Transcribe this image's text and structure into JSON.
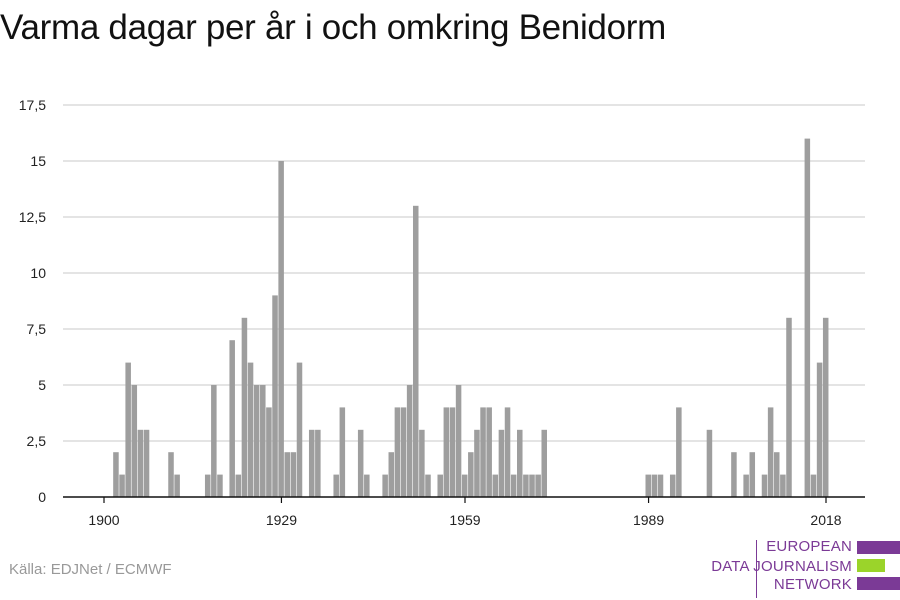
{
  "header": {
    "title": "Varma dagar per år i och omkring Benidorm"
  },
  "footer": {
    "source": "Källa: EDJNet / ECMWF"
  },
  "logo": {
    "lines": [
      "EUROPEAN",
      "DATA JOURNALISM",
      "NETWORK"
    ],
    "colors": {
      "purple": "#7b3a96",
      "green": "#9bd42a"
    }
  },
  "chart_data": {
    "type": "bar",
    "title": "Varma dagar per år i och omkring Benidorm",
    "xlabel": "",
    "ylabel": "",
    "bar_color": "#9e9e9e",
    "grid": true,
    "xlim": [
      1894,
      2024
    ],
    "ylim": [
      0,
      17.5
    ],
    "y_ticks": [
      0,
      2.5,
      5,
      7.5,
      10,
      12.5,
      15,
      17.5
    ],
    "y_tick_labels": [
      "0",
      "2,5",
      "5",
      "7,5",
      "10",
      "12,5",
      "15",
      "17,5"
    ],
    "x_ticks": [
      1900,
      1929,
      1959,
      1989,
      2018
    ],
    "x_tick_labels": [
      "1900",
      "1929",
      "1959",
      "1989",
      "2018"
    ],
    "data": [
      {
        "x": 1902,
        "y": 2
      },
      {
        "x": 1903,
        "y": 1
      },
      {
        "x": 1904,
        "y": 6
      },
      {
        "x": 1905,
        "y": 5
      },
      {
        "x": 1906,
        "y": 3
      },
      {
        "x": 1907,
        "y": 3
      },
      {
        "x": 1911,
        "y": 2
      },
      {
        "x": 1912,
        "y": 1
      },
      {
        "x": 1917,
        "y": 1
      },
      {
        "x": 1918,
        "y": 5
      },
      {
        "x": 1919,
        "y": 1
      },
      {
        "x": 1921,
        "y": 7
      },
      {
        "x": 1922,
        "y": 1
      },
      {
        "x": 1923,
        "y": 8
      },
      {
        "x": 1924,
        "y": 6
      },
      {
        "x": 1925,
        "y": 5
      },
      {
        "x": 1926,
        "y": 5
      },
      {
        "x": 1927,
        "y": 4
      },
      {
        "x": 1928,
        "y": 9
      },
      {
        "x": 1929,
        "y": 15
      },
      {
        "x": 1930,
        "y": 2
      },
      {
        "x": 1931,
        "y": 2
      },
      {
        "x": 1932,
        "y": 6
      },
      {
        "x": 1934,
        "y": 3
      },
      {
        "x": 1935,
        "y": 3
      },
      {
        "x": 1938,
        "y": 1
      },
      {
        "x": 1939,
        "y": 4
      },
      {
        "x": 1942,
        "y": 3
      },
      {
        "x": 1943,
        "y": 1
      },
      {
        "x": 1946,
        "y": 1
      },
      {
        "x": 1947,
        "y": 2
      },
      {
        "x": 1948,
        "y": 4
      },
      {
        "x": 1949,
        "y": 4
      },
      {
        "x": 1950,
        "y": 5
      },
      {
        "x": 1951,
        "y": 13
      },
      {
        "x": 1952,
        "y": 3
      },
      {
        "x": 1953,
        "y": 1
      },
      {
        "x": 1955,
        "y": 1
      },
      {
        "x": 1956,
        "y": 4
      },
      {
        "x": 1957,
        "y": 4
      },
      {
        "x": 1958,
        "y": 5
      },
      {
        "x": 1959,
        "y": 1
      },
      {
        "x": 1960,
        "y": 2
      },
      {
        "x": 1961,
        "y": 3
      },
      {
        "x": 1962,
        "y": 4
      },
      {
        "x": 1963,
        "y": 4
      },
      {
        "x": 1964,
        "y": 1
      },
      {
        "x": 1965,
        "y": 3
      },
      {
        "x": 1966,
        "y": 4
      },
      {
        "x": 1967,
        "y": 1
      },
      {
        "x": 1968,
        "y": 3
      },
      {
        "x": 1969,
        "y": 1
      },
      {
        "x": 1970,
        "y": 1
      },
      {
        "x": 1971,
        "y": 1
      },
      {
        "x": 1972,
        "y": 3
      },
      {
        "x": 1989,
        "y": 1
      },
      {
        "x": 1990,
        "y": 1
      },
      {
        "x": 1991,
        "y": 1
      },
      {
        "x": 1993,
        "y": 1
      },
      {
        "x": 1994,
        "y": 4
      },
      {
        "x": 1999,
        "y": 3
      },
      {
        "x": 2003,
        "y": 2
      },
      {
        "x": 2005,
        "y": 1
      },
      {
        "x": 2006,
        "y": 2
      },
      {
        "x": 2008,
        "y": 1
      },
      {
        "x": 2009,
        "y": 4
      },
      {
        "x": 2010,
        "y": 2
      },
      {
        "x": 2011,
        "y": 1
      },
      {
        "x": 2012,
        "y": 8
      },
      {
        "x": 2015,
        "y": 16
      },
      {
        "x": 2016,
        "y": 1
      },
      {
        "x": 2017,
        "y": 6
      },
      {
        "x": 2018,
        "y": 8
      }
    ]
  }
}
